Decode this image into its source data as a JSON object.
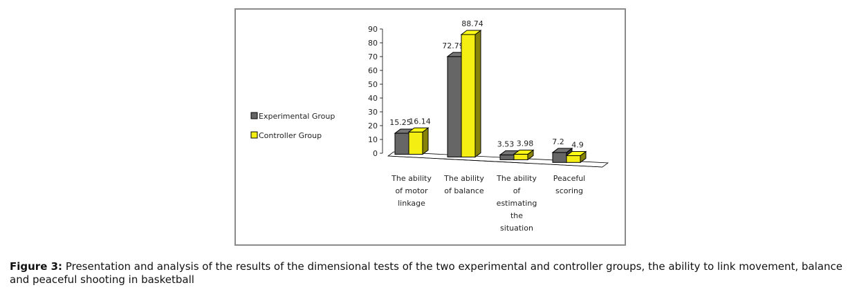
{
  "chart_data": {
    "type": "bar",
    "style": "3d-clustered-column",
    "categories": [
      [
        "The ability",
        "of motor",
        "linkage"
      ],
      [
        "The ability",
        "of balance"
      ],
      [
        "The ability",
        "of",
        "estimating",
        "the",
        "situation"
      ],
      [
        "Peaceful",
        "scoring"
      ]
    ],
    "series": [
      {
        "name": "Experimental Group",
        "color": "#666666",
        "values": [
          15.25,
          72.79,
          3.53,
          7.2
        ],
        "labels": [
          "15.25",
          "72.79",
          "3.53",
          "7.2"
        ]
      },
      {
        "name": "Controller Group",
        "color": "#f5ee12",
        "values": [
          16.14,
          88.74,
          3.98,
          4.9
        ],
        "labels": [
          "16.14",
          "88.74",
          "3.98",
          "4.9"
        ]
      }
    ],
    "ylim": [
      0,
      90
    ],
    "yticks": [
      0,
      10,
      20,
      30,
      40,
      50,
      60,
      70,
      80,
      90
    ],
    "legend_position": "left",
    "grid": false
  },
  "caption": {
    "label": "Figure 3:",
    "text": "Presentation and analysis of the results of the dimensional tests of the two experimental and controller groups, the ability to link movement, balance and peaceful shooting in basketball"
  }
}
